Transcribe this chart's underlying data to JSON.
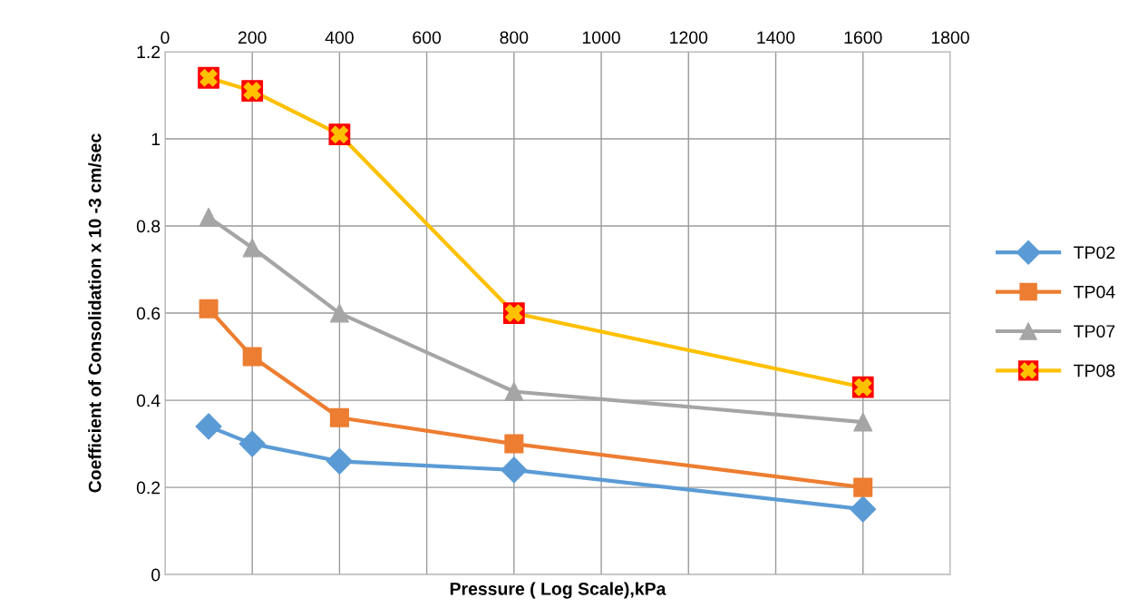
{
  "chart_data": {
    "type": "line",
    "xlabel": "Pressure ( Log Scale),kPa",
    "ylabel": "Coefficient of Consolidation x 10 -3 cm/sec",
    "x": [
      100,
      200,
      400,
      800,
      1600
    ],
    "series": [
      {
        "name": "TP02",
        "color": "#5b9bd5",
        "marker": "diamond",
        "values": [
          0.34,
          0.3,
          0.26,
          0.24,
          0.15
        ]
      },
      {
        "name": "TP04",
        "color": "#ed7d31",
        "marker": "square",
        "values": [
          0.61,
          0.5,
          0.36,
          0.3,
          0.2
        ]
      },
      {
        "name": "TP07",
        "color": "#a5a5a5",
        "marker": "triangle",
        "values": [
          0.82,
          0.75,
          0.6,
          0.42,
          0.35
        ]
      },
      {
        "name": "TP08",
        "color": "#ffc000",
        "marker": "cross",
        "values": [
          1.14,
          1.11,
          1.01,
          0.6,
          0.43
        ]
      }
    ],
    "xlim": [
      0,
      1800
    ],
    "xticks": [
      0,
      200,
      400,
      600,
      800,
      1000,
      1200,
      1400,
      1600,
      1800
    ],
    "ylim": [
      0,
      1.2
    ],
    "yticks": [
      0,
      0.2,
      0.4,
      0.6,
      0.8,
      1,
      1.2
    ],
    "grid": true,
    "legend": "right",
    "line_style": "solid"
  }
}
